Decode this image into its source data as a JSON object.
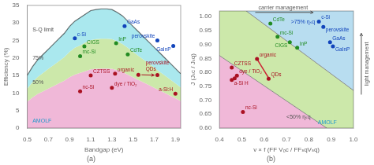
{
  "chart_data": [
    {
      "type": "scatter",
      "title": "(a)",
      "xlabel": "Bandgap (eV)",
      "ylabel": "Efficiency (%)",
      "xlim": [
        0.5,
        1.95
      ],
      "ylim": [
        0,
        35
      ],
      "xticks": [
        0.5,
        0.7,
        0.9,
        1.1,
        1.3,
        1.5,
        1.7,
        1.9
      ],
      "yticks": [
        0,
        5,
        10,
        15,
        20,
        25,
        30,
        35
      ],
      "grid": false,
      "x": [
        0.5,
        0.55,
        0.6,
        0.65,
        0.7,
        0.75,
        0.8,
        0.85,
        0.9,
        0.95,
        1.0,
        1.05,
        1.1,
        1.15,
        1.2,
        1.25,
        1.3,
        1.35,
        1.4,
        1.45,
        1.5,
        1.55,
        1.6,
        1.65,
        1.7,
        1.75,
        1.8,
        1.85,
        1.9,
        1.95
      ],
      "series": [
        {
          "type": "area",
          "color": "#aae8ee",
          "values": [
            15.0,
            17.5,
            19.5,
            21.0,
            22.5,
            24.0,
            25.5,
            27.0,
            29.0,
            30.5,
            31.5,
            32.5,
            33.5,
            33.8,
            34.0,
            34.0,
            33.8,
            33.0,
            32.0,
            30.5,
            29.0,
            27.5,
            26.0,
            24.5,
            23.0,
            21.5,
            20.0,
            18.5,
            17.0,
            15.5
          ]
        },
        {
          "type": "area",
          "color": "#cce8aa",
          "values": [
            11.25,
            13.1,
            14.6,
            15.75,
            16.9,
            18.0,
            19.1,
            20.25,
            21.75,
            22.9,
            23.6,
            24.4,
            25.1,
            25.35,
            25.5,
            25.5,
            25.35,
            24.75,
            24.0,
            22.9,
            21.75,
            20.6,
            19.5,
            18.4,
            17.25,
            16.1,
            15.0,
            13.9,
            12.75,
            11.6
          ]
        },
        {
          "type": "area",
          "color": "#f0b8d8",
          "values": [
            7.5,
            8.75,
            9.75,
            10.5,
            11.25,
            12.0,
            12.75,
            13.5,
            14.5,
            15.25,
            15.75,
            16.25,
            16.75,
            16.9,
            17.0,
            17.0,
            16.9,
            16.5,
            16.0,
            15.25,
            14.5,
            13.75,
            13.0,
            12.25,
            11.5,
            10.75,
            10.0,
            9.25,
            8.5,
            7.75
          ]
        },
        {
          "type": "scatter",
          "color": "#1144bb",
          "x": [
            0.95,
            1.42,
            1.73,
            1.88
          ],
          "values": [
            25.6,
            29.1,
            25.0,
            23.4
          ],
          "labels": [
            "c-Si",
            "GaAs",
            "perovskite",
            "GaInP"
          ]
        },
        {
          "type": "scatter",
          "color": "#228B22",
          "x": [
            1.04,
            1.0,
            1.34,
            1.45
          ],
          "values": [
            23.3,
            20.5,
            24.2,
            21.0
          ],
          "labels": [
            "CIGS",
            "mc-Si",
            "InP",
            "CdTe"
          ]
        },
        {
          "type": "scatter",
          "color": "#aa1122",
          "x": [
            1.1,
            1.0,
            1.3,
            1.33,
            1.55,
            1.73,
            1.9
          ],
          "values": [
            15.0,
            10.5,
            11.5,
            15.5,
            15.2,
            15.1,
            9.8
          ],
          "labels": [
            "CZTSS",
            "nc-Si",
            "dye / TiO₂",
            "organic",
            null,
            "perovskite\nQDs",
            "a-Si:H"
          ]
        }
      ],
      "annotations": [
        {
          "text": "S-Q limit",
          "x": 0.55,
          "y": 27.5
        },
        {
          "text": "75%",
          "x": 0.55,
          "y": 19.5
        },
        {
          "text": "50%",
          "x": 0.55,
          "y": 12.5
        },
        {
          "text": "AMOLF",
          "x": 0.55,
          "y": 1.5,
          "color": "#2299cc"
        },
        {
          "x1": 1.58,
          "y1": 15.2,
          "x2": 1.7,
          "y2": 15.1,
          "color": "#aa1122"
        }
      ]
    },
    {
      "type": "scatter",
      "title": "(b)",
      "xlabel": "v × f (FF Vₒc / FFₛqVₛq)",
      "ylabel": "J (Jₛc / Jₛq)",
      "xlim": [
        0.4,
        1.0
      ],
      "ylim": [
        0.6,
        1.02
      ],
      "xticks": [
        0.4,
        0.5,
        0.6,
        0.7,
        0.8,
        0.9,
        {
          "value": 1.0,
          "label": "1.0"
        }
      ],
      "yticks": [
        {
          "value": 0.6,
          "label": "0.60"
        },
        0.65,
        {
          "value": 0.7,
          "label": "0.70"
        },
        0.75,
        {
          "value": 0.8,
          "label": "0.80"
        },
        0.85,
        {
          "value": 0.9,
          "label": "0.90"
        },
        0.95,
        {
          "value": 1.0,
          "label": "1.00"
        }
      ],
      "grid": false,
      "colors": [
        "#f0b8d8",
        "#cce8aa",
        "#b8ddf0"
      ],
      "series": [
        {
          "type": "boundary",
          "x": [
            0.4,
            0.88
          ],
          "values": [
            0.86,
            0.6
          ]
        },
        {
          "type": "boundary",
          "x": [
            0.52,
            1.0
          ],
          "values": [
            1.02,
            0.735
          ]
        },
        {
          "type": "scatter",
          "color": "#1144bb",
          "x": [
            0.845,
            0.865,
            0.895,
            0.908
          ],
          "values": [
            0.982,
            0.963,
            0.908,
            0.893
          ],
          "labels": [
            "c-Si",
            "perovskite",
            "GaAs",
            "GaInP"
          ]
        },
        {
          "type": "scatter",
          "color": "#228B22",
          "x": [
            0.628,
            0.66,
            0.715,
            0.748
          ],
          "values": [
            0.975,
            0.928,
            0.908,
            0.888
          ],
          "labels": [
            "CdTe",
            "mc-Si",
            "CIGS",
            "InP"
          ]
        },
        {
          "type": "scatter",
          "color": "#aa1122",
          "x": [
            0.455,
            0.478,
            0.468,
            0.505,
            0.62,
            0.455,
            0.568
          ],
          "values": [
            0.817,
            0.788,
            0.778,
            0.658,
            0.777,
            0.773,
            0.848
          ],
          "labels": [
            "CZTSS",
            "dye / TiO₂",
            null,
            "nc-Si",
            "QDs",
            "a-Si H",
            "organic"
          ]
        },
        {
          "type": "line",
          "color": "#cc2233",
          "x": [
            0.568,
            0.622
          ],
          "values": [
            0.848,
            0.777
          ]
        }
      ],
      "annotations": [
        {
          "text": "<50% ηₛq",
          "x": 0.7,
          "y": 0.635
        },
        {
          "text": ">75% ηₛq",
          "x": 0.72,
          "y": 0.975,
          "color": "#1144bb"
        },
        {
          "x1": 0.56,
          "y1": 1.015,
          "x2": 0.82,
          "y2": 1.015
        },
        {
          "text": "carrier management",
          "x": 0.685,
          "y": 1.022
        },
        {
          "x1": 1.035,
          "y1": 0.72,
          "x2": 1.035,
          "y2": 0.94
        },
        {
          "text": "light management",
          "x": 1.048,
          "y": 0.83
        },
        {
          "text": "AMOLF",
          "x": 0.84,
          "y": 0.615,
          "color": "#2299cc"
        }
      ]
    }
  ]
}
